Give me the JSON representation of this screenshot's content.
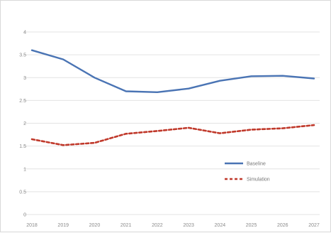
{
  "chart_data": {
    "type": "line",
    "x": [
      "2018",
      "2019",
      "2020",
      "2021",
      "2022",
      "2023",
      "2024",
      "2025",
      "2026",
      "2027"
    ],
    "ylim": [
      0,
      4
    ],
    "yticks": [
      "0",
      "0.5",
      "1",
      "1.5",
      "2",
      "2.5",
      "3",
      "3.5",
      "4"
    ],
    "grid": true,
    "legend_position": "right",
    "series": [
      {
        "name": "Baseline",
        "values": [
          3.6,
          3.4,
          3.0,
          2.7,
          2.68,
          2.76,
          2.93,
          3.03,
          3.04,
          2.98
        ],
        "color": "#4a74b4",
        "style": "solid"
      },
      {
        "name": "Simulation",
        "values": [
          1.65,
          1.52,
          1.57,
          1.77,
          1.83,
          1.9,
          1.78,
          1.86,
          1.89,
          1.96
        ],
        "color": "#c0392b",
        "style": "dashed"
      }
    ]
  }
}
